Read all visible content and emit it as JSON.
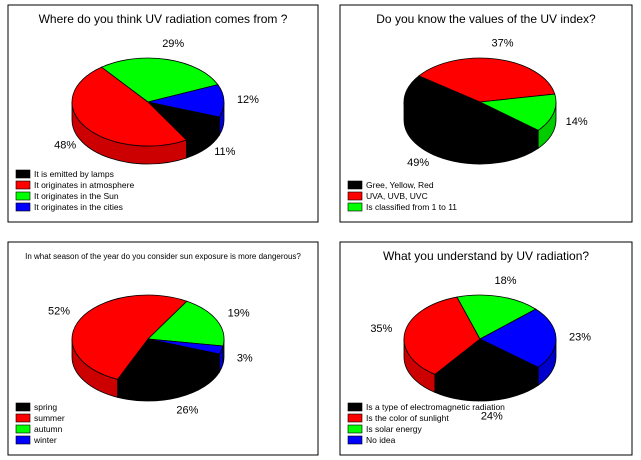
{
  "chart_data": [
    {
      "type": "pie",
      "title": "Where do you think UV radiation comes from ?",
      "categories": [
        "It is emitted by lamps",
        "It originates in atmosphere",
        "It originates in the Sun",
        "It originates in the cities"
      ],
      "values": [
        11,
        48,
        29,
        12
      ],
      "value_labels": [
        "11%",
        "48%",
        "29%",
        "12%"
      ],
      "colors": [
        "#000000",
        "#ff0000",
        "#00ff00",
        "#0000ff"
      ]
    },
    {
      "type": "pie",
      "title": "Do you know the values of the UV index?",
      "categories": [
        "Gree, Yellow, Red",
        "UVA, UVB, UVC",
        "Is classified from 1 to 11"
      ],
      "values": [
        49,
        37,
        14
      ],
      "value_labels": [
        "49%",
        "37%",
        "14%"
      ],
      "colors": [
        "#000000",
        "#ff0000",
        "#00ff00"
      ]
    },
    {
      "type": "pie",
      "title": "In what season of the year do you consider sun exposure is more dangerous?",
      "categories": [
        "spring",
        "summer",
        "autumn",
        "winter"
      ],
      "values": [
        26,
        52,
        19,
        3
      ],
      "value_labels": [
        "26%",
        "52%",
        "19%",
        "3%"
      ],
      "colors": [
        "#000000",
        "#ff0000",
        "#00ff00",
        "#0000ff"
      ]
    },
    {
      "type": "pie",
      "title": "What you understand by UV radiation?",
      "categories": [
        "Is a type of electromagnetic radiation",
        "Is the color of sunlight",
        "Is solar energy",
        "No idea"
      ],
      "values": [
        24,
        35,
        18,
        23
      ],
      "value_labels": [
        "24%",
        "35%",
        "18%",
        "23%"
      ],
      "colors": [
        "#000000",
        "#ff0000",
        "#00ff00",
        "#0000ff"
      ]
    }
  ]
}
